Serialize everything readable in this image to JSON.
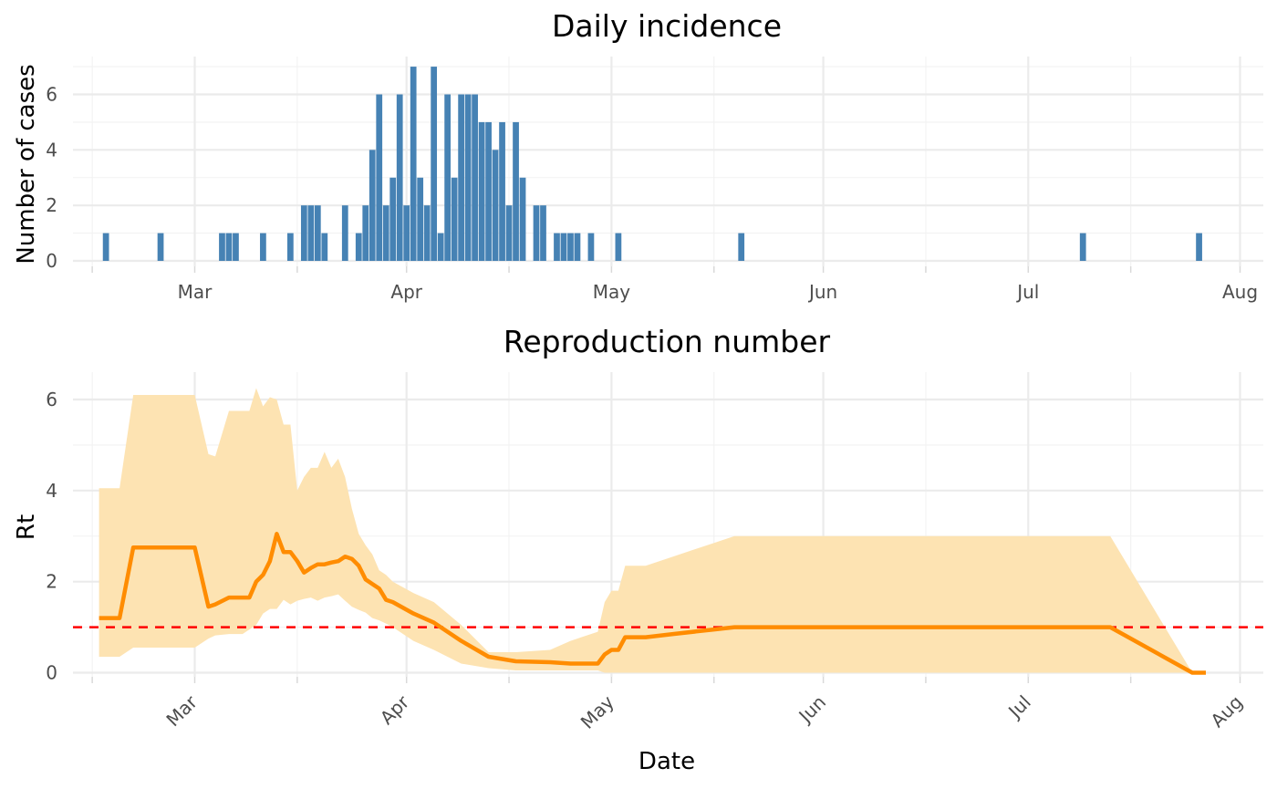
{
  "chart_data": [
    {
      "type": "bar",
      "title": "Daily incidence",
      "xlabel": "",
      "ylabel": "Number of cases",
      "ylim": [
        0,
        7
      ],
      "y_ticks": [
        "0",
        "2",
        "4",
        "6"
      ],
      "x_tick_labels": [
        "Mar",
        "Apr",
        "May",
        "Jun",
        "Jul",
        "Aug"
      ],
      "bar_color": "#4682b4",
      "grid": true,
      "x": [
        "2020-02-17",
        "2020-02-25",
        "2020-03-05",
        "2020-03-06",
        "2020-03-07",
        "2020-03-11",
        "2020-03-15",
        "2020-03-17",
        "2020-03-18",
        "2020-03-19",
        "2020-03-20",
        "2020-03-23",
        "2020-03-25",
        "2020-03-26",
        "2020-03-27",
        "2020-03-28",
        "2020-03-29",
        "2020-03-30",
        "2020-03-31",
        "2020-04-01",
        "2020-04-02",
        "2020-04-03",
        "2020-04-04",
        "2020-04-05",
        "2020-04-06",
        "2020-04-07",
        "2020-04-08",
        "2020-04-09",
        "2020-04-10",
        "2020-04-11",
        "2020-04-12",
        "2020-04-13",
        "2020-04-14",
        "2020-04-15",
        "2020-04-16",
        "2020-04-17",
        "2020-04-18",
        "2020-04-20",
        "2020-04-21",
        "2020-04-23",
        "2020-04-24",
        "2020-04-25",
        "2020-04-26",
        "2020-04-28",
        "2020-05-02",
        "2020-05-20",
        "2020-07-09",
        "2020-07-26"
      ],
      "values": [
        1,
        1,
        1,
        1,
        1,
        1,
        1,
        2,
        2,
        2,
        1,
        2,
        1,
        2,
        4,
        6,
        2,
        3,
        6,
        2,
        7,
        3,
        2,
        7,
        1,
        6,
        3,
        6,
        6,
        6,
        5,
        5,
        4,
        5,
        2,
        5,
        3,
        2,
        2,
        1,
        1,
        1,
        1,
        1,
        1,
        1,
        1,
        1
      ]
    },
    {
      "type": "line",
      "title": "Reproduction number",
      "xlabel": "Date",
      "ylabel": "Rt",
      "ylim": [
        0,
        6.3
      ],
      "y_ticks": [
        "0",
        "2",
        "4",
        "6"
      ],
      "x_tick_labels": [
        "Mar",
        "Apr",
        "May",
        "Jun",
        "Jul",
        "Aug"
      ],
      "line_color": "#ff8c00",
      "band_color": "#fde3b2",
      "reference_line": {
        "y": 1,
        "color": "#ff0000",
        "style": "dashed"
      },
      "grid": true,
      "series": [
        {
          "x": [
            "2020-02-16",
            "2020-02-19",
            "2020-02-21",
            "2020-02-24",
            "2020-02-26",
            "2020-03-01",
            "2020-03-03",
            "2020-03-04",
            "2020-03-06",
            "2020-03-08",
            "2020-03-09",
            "2020-03-10",
            "2020-03-11",
            "2020-03-12",
            "2020-03-13",
            "2020-03-14",
            "2020-03-15",
            "2020-03-16",
            "2020-03-17",
            "2020-03-18",
            "2020-03-19",
            "2020-03-20",
            "2020-03-21",
            "2020-03-22",
            "2020-03-23",
            "2020-03-24",
            "2020-03-25",
            "2020-03-26",
            "2020-03-27",
            "2020-03-28",
            "2020-03-29",
            "2020-03-30",
            "2020-04-02",
            "2020-04-05",
            "2020-04-09",
            "2020-04-13",
            "2020-04-17",
            "2020-04-22",
            "2020-04-25",
            "2020-04-29",
            "2020-04-30",
            "2020-05-01",
            "2020-05-02",
            "2020-05-03",
            "2020-05-06",
            "2020-05-10",
            "2020-05-16",
            "2020-05-19",
            "2020-06-10",
            "2020-07-10",
            "2020-07-13",
            "2020-07-25",
            "2020-07-27"
          ],
          "mean": [
            1.2,
            1.2,
            2.75,
            2.75,
            2.75,
            2.75,
            1.45,
            1.5,
            1.65,
            1.65,
            1.65,
            2.0,
            2.15,
            2.45,
            3.05,
            2.65,
            2.65,
            2.45,
            2.2,
            2.3,
            2.38,
            2.38,
            2.42,
            2.45,
            2.55,
            2.5,
            2.35,
            2.05,
            1.95,
            1.85,
            1.6,
            1.55,
            1.3,
            1.1,
            0.7,
            0.35,
            0.25,
            0.23,
            0.2,
            0.2,
            0.4,
            0.5,
            0.5,
            0.78,
            0.78,
            0.85,
            0.95,
            1.0,
            1.0,
            1.0,
            1.0,
            0.0,
            0.0
          ],
          "lower": [
            0.35,
            0.35,
            0.55,
            0.55,
            0.55,
            0.55,
            0.75,
            0.82,
            0.85,
            0.85,
            0.95,
            1.05,
            1.3,
            1.4,
            1.4,
            1.6,
            1.5,
            1.58,
            1.62,
            1.65,
            1.58,
            1.65,
            1.68,
            1.72,
            1.58,
            1.45,
            1.38,
            1.32,
            1.2,
            1.15,
            1.08,
            1.0,
            0.7,
            0.5,
            0.2,
            0.1,
            0.05,
            0.05,
            0.05,
            0.05,
            0.0,
            0.0,
            0.0,
            0.0,
            0.0,
            0.0,
            0.0,
            0.0,
            0.0,
            0.0,
            0.0,
            0.0,
            0.0
          ],
          "upper": [
            4.05,
            4.05,
            6.1,
            6.1,
            6.1,
            6.1,
            4.8,
            4.75,
            5.75,
            5.75,
            5.75,
            6.25,
            5.85,
            6.05,
            6.0,
            5.45,
            5.45,
            4.0,
            4.3,
            4.5,
            4.5,
            4.85,
            4.5,
            4.7,
            4.3,
            3.6,
            3.05,
            2.8,
            2.6,
            2.25,
            2.15,
            2.0,
            1.75,
            1.55,
            1.05,
            0.45,
            0.45,
            0.5,
            0.7,
            0.9,
            1.55,
            1.8,
            1.8,
            2.35,
            2.35,
            2.55,
            2.85,
            3.0,
            3.0,
            3.0,
            3.0,
            0.0,
            0.0
          ]
        }
      ]
    }
  ]
}
